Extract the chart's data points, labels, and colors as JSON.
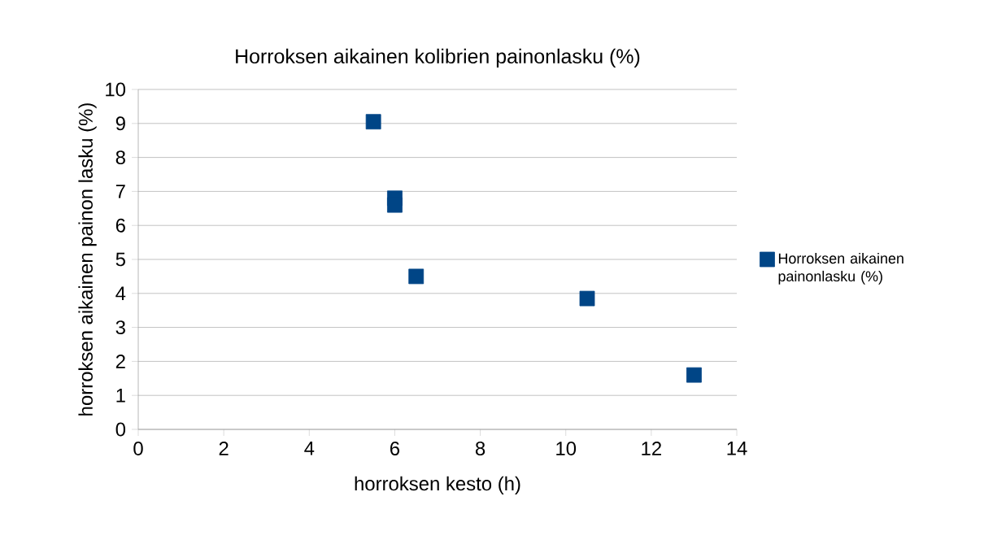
{
  "chart_data": {
    "type": "scatter",
    "title": "Horroksen aikainen kolibrien painonlasku (%)",
    "xlabel": "horroksen kesto (h)",
    "ylabel": "horroksen aikainen painon lasku (%)",
    "series": [
      {
        "name": "Horroksen aikainen painonlasku (%)",
        "color": "#004586",
        "x": [
          5.5,
          6,
          6,
          6.5,
          10.5,
          13
        ],
        "values": [
          9.05,
          6.8,
          6.6,
          4.5,
          3.85,
          1.6
        ]
      }
    ],
    "xlim": [
      0,
      14
    ],
    "xticks": [
      0,
      2,
      4,
      6,
      8,
      10,
      12,
      14
    ],
    "ylim": [
      0,
      10
    ],
    "yticks": [
      0,
      1,
      2,
      3,
      4,
      5,
      6,
      7,
      8,
      9,
      10
    ],
    "grid": "y",
    "legend": "right",
    "marker": "square"
  }
}
